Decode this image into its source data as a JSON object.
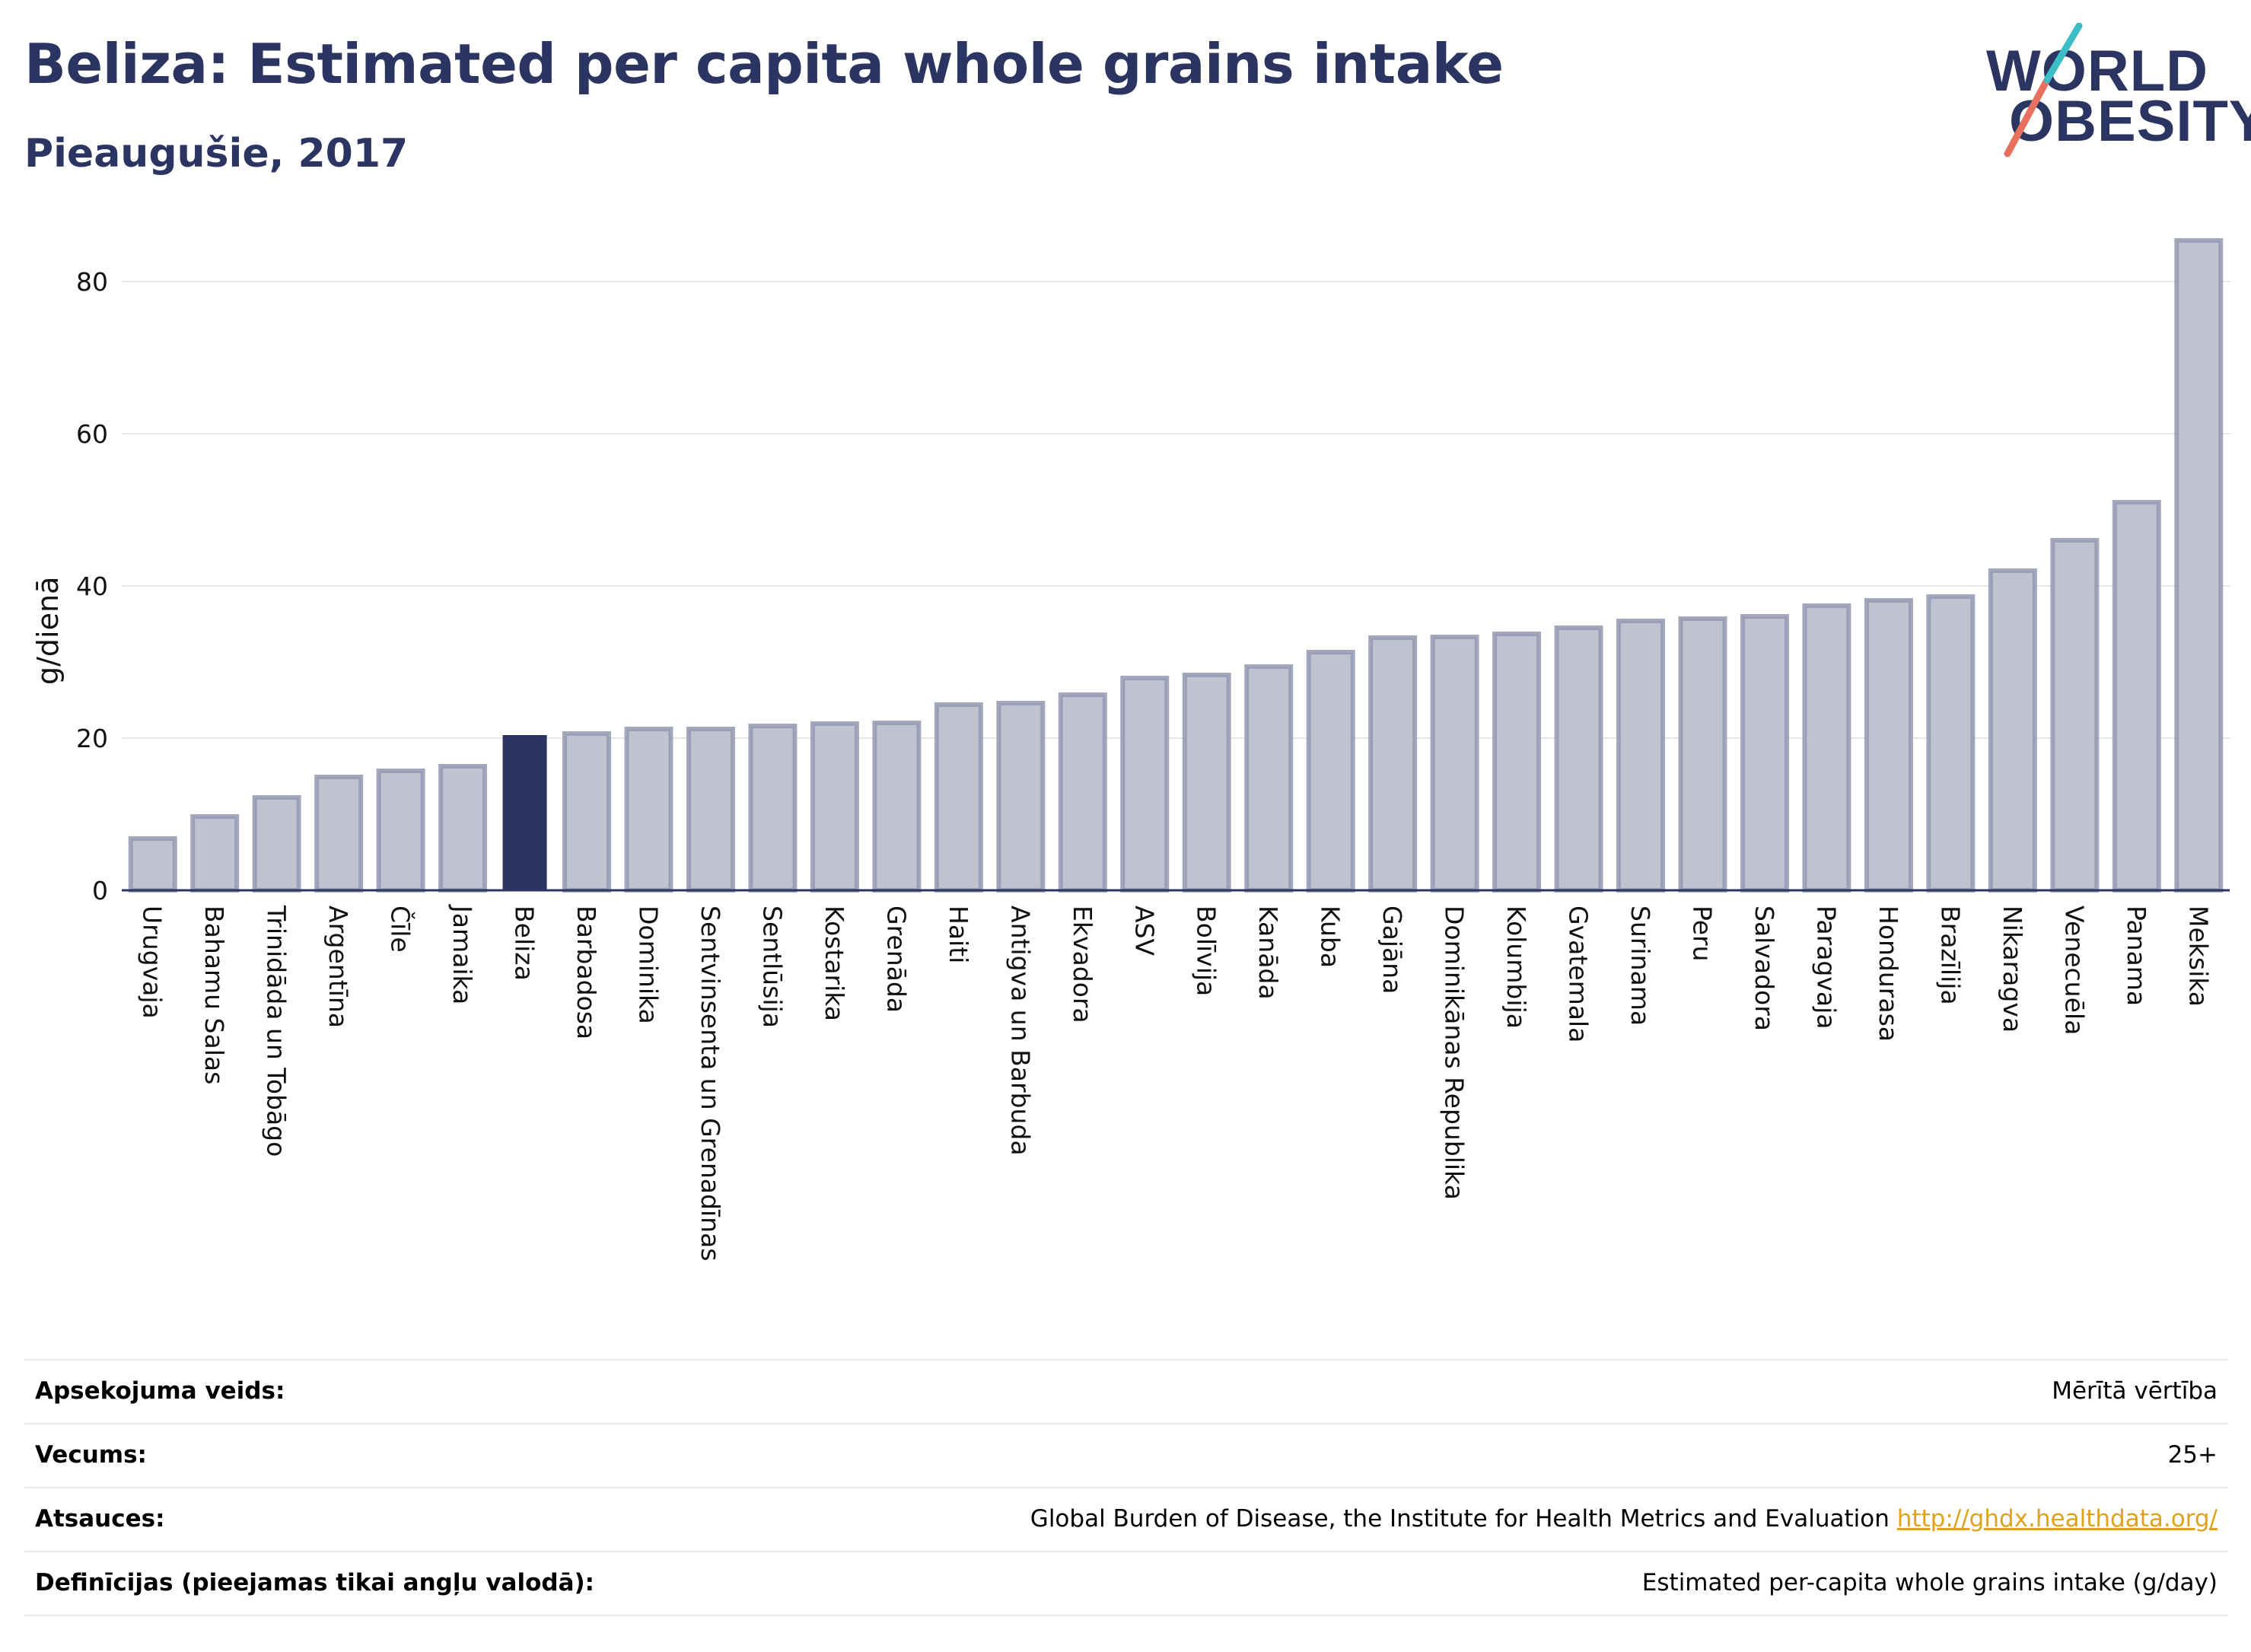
{
  "header": {
    "title": "Beliza: Estimated per capita whole grains intake",
    "subtitle": "Pieaugušie, 2017"
  },
  "logo": {
    "line1": "WORLD",
    "line2": "OBESITY",
    "slash_colors": [
      "#e8705e",
      "#3cbec6"
    ]
  },
  "colors": {
    "highlight": "#2b3561",
    "bar": "#bfc3d0",
    "bar_border": "#9499b0",
    "axis": "#2b3561",
    "grid": "#e6e6e6"
  },
  "chart_data": {
    "type": "bar",
    "ylabel": "g/dienā",
    "xlabel": "",
    "ylim": [
      0,
      87
    ],
    "yticks": [
      0,
      20,
      40,
      60,
      80
    ],
    "grid": true,
    "highlight": "Beliza",
    "categories": [
      "Urugvaja",
      "Bahamu Salas",
      "Trinidāda un Tobāgo",
      "Argentīna",
      "Čīle",
      "Jamaika",
      "Beliza",
      "Barbadosa",
      "Dominika",
      "Sentvinsenta un Grenadīnas",
      "Sentlūsija",
      "Kostarika",
      "Grenāda",
      "Haiti",
      "Antigva un Barbuda",
      "Ekvadora",
      "ASV",
      "Bolīvija",
      "Kanāda",
      "Kuba",
      "Gajāna",
      "Dominikānas Republika",
      "Kolumbija",
      "Gvatemala",
      "Surinama",
      "Peru",
      "Salvadora",
      "Paragvaja",
      "Hondurasa",
      "Brazīlija",
      "Nikaragva",
      "Venecuēla",
      "Panama",
      "Meksika"
    ],
    "values": [
      6.8,
      9.7,
      12.2,
      14.9,
      15.7,
      16.3,
      20.4,
      20.6,
      21.2,
      21.2,
      21.6,
      21.9,
      22.0,
      24.4,
      24.6,
      25.7,
      27.9,
      28.3,
      29.4,
      31.3,
      33.2,
      33.3,
      33.7,
      34.5,
      35.4,
      35.7,
      36.0,
      37.4,
      38.1,
      38.6,
      42.0,
      46.0,
      51.0,
      85.4
    ]
  },
  "meta": [
    {
      "label": "Apsekojuma veids:",
      "value": "Mērītā vērtība"
    },
    {
      "label": "Vecums:",
      "value": "25+"
    },
    {
      "label": "Atsauces:",
      "value": "Global Burden of Disease, the Institute for Health Metrics and Evaluation",
      "link": "http://ghdx.healthdata.org/"
    },
    {
      "label": "Definīcijas (pieejamas tikai angļu valodā):",
      "value": "Estimated per-capita whole grains intake (g/day)"
    }
  ]
}
